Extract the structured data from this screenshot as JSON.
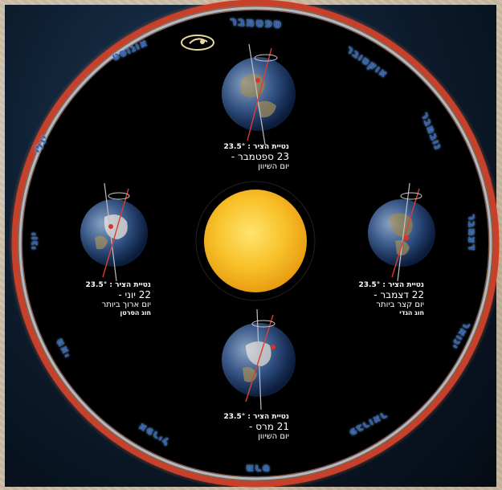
{
  "months": {
    "september": "ספטמבר",
    "october": "אוקטובר",
    "november": "נובמבר",
    "december": "דצמבר",
    "january": "ינואר",
    "february": "פברואר",
    "march": "מרס",
    "april": "אפריל",
    "may": "מאי",
    "june": "יוני",
    "july": "יולי",
    "august": "אוגוסט"
  },
  "captions": {
    "top": {
      "tilt": "נטיית הציר : 23.5°",
      "date": "23 ספטמבר -",
      "desc": "יום השיוון",
      "holiday": ""
    },
    "left": {
      "tilt": "נטיית הציר : 23.5°",
      "date": "22 יוני -",
      "desc": "יום ארוך ביותר",
      "holiday": "חוג הסרטן"
    },
    "right": {
      "tilt": "נטיית הציר : 23.5°",
      "date": "22 דצמבר -",
      "desc": "יום קצר ביותר",
      "holiday": "חוג הגדי"
    },
    "bottom": {
      "tilt": "נטיית הציר : 23.5°",
      "date": "21 מרס -",
      "desc": "יום השיוון",
      "holiday": ""
    }
  },
  "colors": {
    "ring_outer": "#c8402c",
    "ring_inner": "#b8c8e0",
    "disc": "#000000",
    "sun": "#f6b820",
    "month_text": "#2e5fa8"
  }
}
